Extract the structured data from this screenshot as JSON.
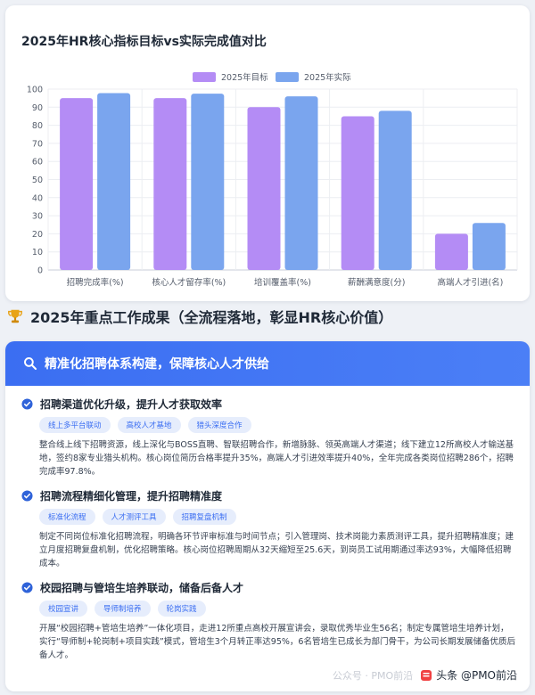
{
  "chart_data": {
    "type": "bar",
    "title": "2025年HR核心指标目标vs实际完成值对比",
    "categories": [
      "招聘完成率(%)",
      "核心人才留存率(%)",
      "培训覆盖率(%)",
      "薪酬满意度(分)",
      "高端人才引进(名)"
    ],
    "series": [
      {
        "name": "2025年目标",
        "values": [
          95,
          95,
          90,
          85,
          20
        ],
        "color": "#b48cf5"
      },
      {
        "name": "2025年实际",
        "values": [
          97.8,
          97.5,
          96,
          88,
          26
        ],
        "color": "#7aa5ee"
      }
    ],
    "ylim": [
      0,
      100
    ],
    "yticks": [
      0,
      10,
      20,
      30,
      40,
      50,
      60,
      70,
      80,
      90,
      100
    ],
    "grid": true,
    "legend": "top-center"
  },
  "section": {
    "heading": "2025年重点工作成果（全流程落地，彰显HR核心价值）",
    "heading_icon": "trophy-icon"
  },
  "card": {
    "header": "精准化招聘体系构建，保障核心人才供给",
    "header_icon": "search-icon",
    "items": [
      {
        "title": "招聘渠道优化升级，提升人才获取效率",
        "tags": [
          "线上多平台联动",
          "高校人才基地",
          "猎头深度合作"
        ],
        "desc": "整合线上线下招聘资源，线上深化与BOSS直聘、智联招聘合作，新增脉脉、领英高端人才渠道；线下建立12所高校人才输送基地，签约8家专业猎头机构。核心岗位简历合格率提升35%，高端人才引进效率提升40%，全年完成各类岗位招聘286个，招聘完成率97.8%。"
      },
      {
        "title": "招聘流程精细化管理，提升招聘精准度",
        "tags": [
          "标准化流程",
          "人才测评工具",
          "招聘复盘机制"
        ],
        "desc": "制定不同岗位标准化招聘流程，明确各环节评审标准与时间节点；引入管理岗、技术岗能力素质测评工具，提升招聘精准度；建立月度招聘复盘机制，优化招聘策略。核心岗位招聘周期从32天缩短至25.6天，到岗员工试用期通过率达93%，大幅降低招聘成本。"
      },
      {
        "title": "校园招聘与管培生培养联动，储备后备人才",
        "tags": [
          "校园宣讲",
          "导师制培养",
          "轮岗实践"
        ],
        "desc": "开展“校园招聘+管培生培养”一体化项目，走进12所重点高校开展宣讲会，录取优秀毕业生56名；制定专属管培生培养计划，实行“导师制+轮岗制+项目实践”模式，管培生3个月转正率达95%，6名管培生已成长为部门骨干，为公司长期发展储备优质后备人才。"
      }
    ]
  },
  "watermark": {
    "ghost": "公众号 · PMO前沿",
    "text": "头条 @PMO前沿"
  }
}
